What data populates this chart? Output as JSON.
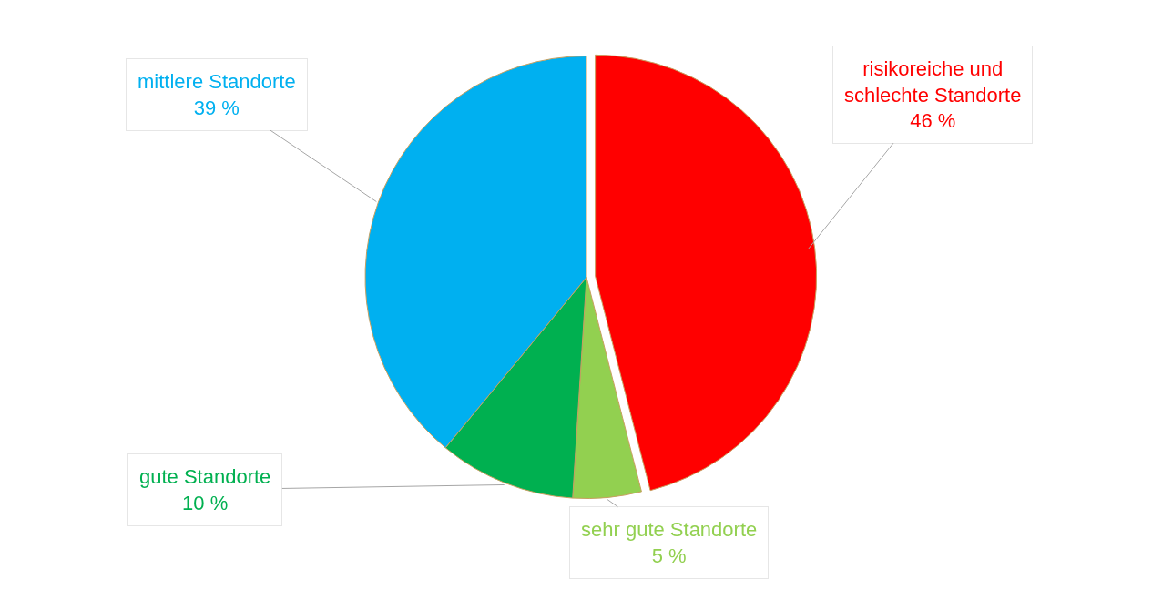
{
  "chart_data": {
    "type": "pie",
    "categories": [
      "risikoreiche und schlechte Standorte",
      "sehr gute Standorte",
      "gute Standorte",
      "mittlere Standorte"
    ],
    "values": [
      46,
      5,
      10,
      39
    ],
    "value_labels": [
      "46 %",
      "5 %",
      "10 %",
      "39 %"
    ],
    "colors": [
      "#ff0000",
      "#92d050",
      "#00b050",
      "#00b0f0"
    ],
    "legend": false
  }
}
